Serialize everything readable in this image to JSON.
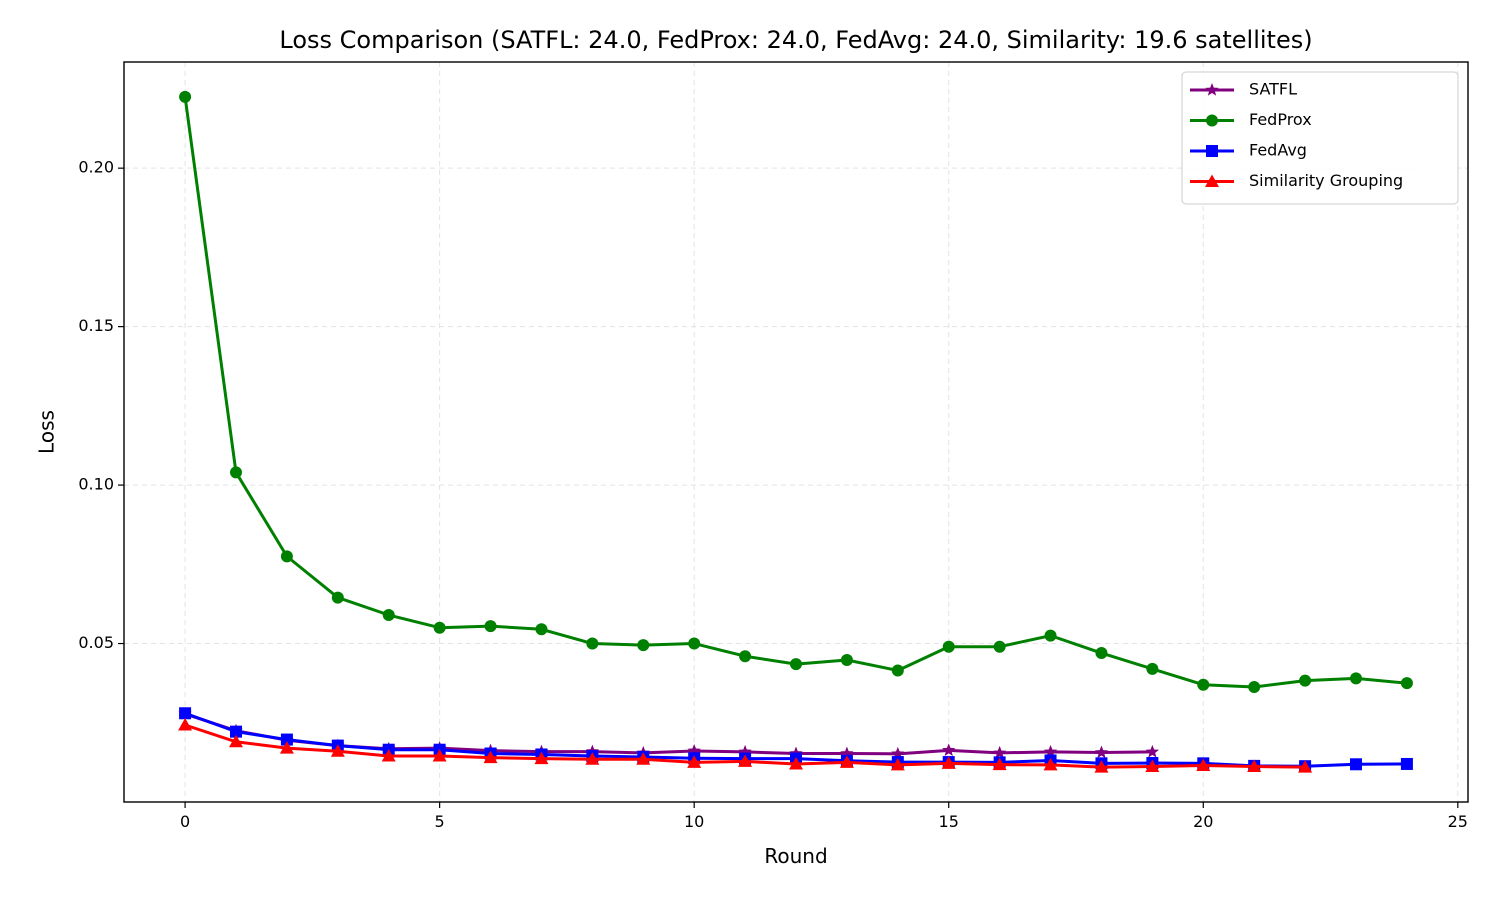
{
  "chart_data": {
    "type": "line",
    "title": "Loss Comparison (SATFL: 24.0, FedProx: 24.0, FedAvg: 24.0, Similarity: 19.6 satellites)",
    "xlabel": "Round",
    "ylabel": "Loss",
    "xlim": [
      -1.2,
      25.2
    ],
    "ylim": [
      0.0,
      0.2335
    ],
    "xticks": [
      0,
      5,
      10,
      15,
      20,
      25
    ],
    "xtick_labels": [
      "0",
      "5",
      "10",
      "15",
      "20",
      "25"
    ],
    "yticks": [
      0.05,
      0.1,
      0.15,
      0.2
    ],
    "ytick_labels": [
      "0.05",
      "0.10",
      "0.15",
      "0.20"
    ],
    "grid": true,
    "legend_position": "top-right",
    "series": [
      {
        "name": "SATFL",
        "color": "#800080",
        "marker": "star",
        "x": [
          0,
          1,
          2,
          3,
          4,
          5,
          6,
          7,
          8,
          9,
          10,
          11,
          12,
          13,
          14,
          15,
          16,
          17,
          18,
          19
        ],
        "values": [
          0.0278,
          0.0225,
          0.0195,
          0.0178,
          0.0168,
          0.017,
          0.0162,
          0.0159,
          0.0159,
          0.0155,
          0.0161,
          0.0158,
          0.0153,
          0.0153,
          0.0152,
          0.0163,
          0.0155,
          0.0158,
          0.0156,
          0.0158
        ]
      },
      {
        "name": "FedProx",
        "color": "#008000",
        "marker": "circle",
        "x": [
          0,
          1,
          2,
          3,
          4,
          5,
          6,
          7,
          8,
          9,
          10,
          11,
          12,
          13,
          14,
          15,
          16,
          17,
          18,
          19,
          20,
          21,
          22,
          23,
          24
        ],
        "values": [
          0.2225,
          0.104,
          0.0775,
          0.0645,
          0.059,
          0.055,
          0.0555,
          0.0545,
          0.05,
          0.0495,
          0.05,
          0.046,
          0.0435,
          0.0448,
          0.0415,
          0.049,
          0.049,
          0.0525,
          0.047,
          0.042,
          0.037,
          0.0363,
          0.0383,
          0.039,
          0.0375
        ]
      },
      {
        "name": "FedAvg",
        "color": "#0000ff",
        "marker": "square",
        "x": [
          0,
          1,
          2,
          3,
          4,
          5,
          6,
          7,
          8,
          9,
          10,
          11,
          12,
          13,
          14,
          15,
          16,
          17,
          18,
          19,
          20,
          21,
          22,
          23,
          24
        ],
        "values": [
          0.028,
          0.0222,
          0.0197,
          0.0178,
          0.0165,
          0.0165,
          0.0153,
          0.015,
          0.0145,
          0.0142,
          0.0138,
          0.0137,
          0.0137,
          0.013,
          0.0126,
          0.0126,
          0.0125,
          0.0131,
          0.0122,
          0.0123,
          0.0122,
          0.0114,
          0.0113,
          0.0119,
          0.012
        ]
      },
      {
        "name": "Similarity Grouping",
        "color": "#ff0000",
        "marker": "triangle",
        "x": [
          0,
          1,
          2,
          3,
          4,
          5,
          6,
          7,
          8,
          9,
          10,
          11,
          12,
          13,
          14,
          15,
          16,
          17,
          18,
          19,
          20,
          21,
          22
        ],
        "values": [
          0.0243,
          0.019,
          0.017,
          0.016,
          0.0145,
          0.0145,
          0.014,
          0.0137,
          0.0135,
          0.0135,
          0.0125,
          0.0128,
          0.012,
          0.0125,
          0.0117,
          0.0122,
          0.0118,
          0.0117,
          0.011,
          0.0112,
          0.0115,
          0.0112,
          0.011
        ]
      }
    ]
  }
}
